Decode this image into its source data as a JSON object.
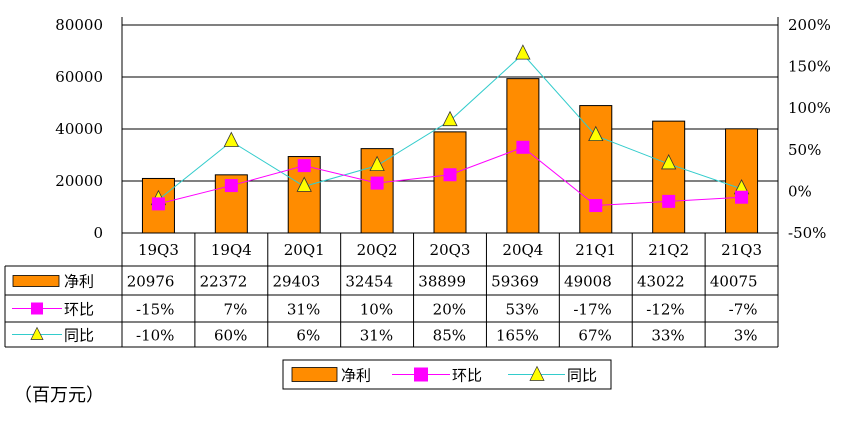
{
  "chart_data": {
    "type": "bar+line",
    "categories": [
      "19Q3",
      "19Q4",
      "20Q1",
      "20Q2",
      "20Q3",
      "20Q4",
      "21Q1",
      "21Q2",
      "21Q3"
    ],
    "series": [
      {
        "name": "净利",
        "type": "bar",
        "axis": "left",
        "color": "#FF8C00",
        "values": [
          20976,
          22372,
          29403,
          32454,
          38899,
          59369,
          49008,
          43022,
          40075
        ],
        "labels": [
          "20976",
          "22372",
          "29403",
          "32454",
          "38899",
          "59369",
          "49008",
          "43022",
          "40075"
        ]
      },
      {
        "name": "环比",
        "type": "line",
        "axis": "right",
        "color": "#FF00FF",
        "marker": "square",
        "values": [
          -15,
          7,
          31,
          10,
          20,
          53,
          -17,
          -12,
          -7
        ],
        "labels": [
          "-15%",
          "7%",
          "31%",
          "10%",
          "20%",
          "53%",
          "-17%",
          "-12%",
          "-7%"
        ]
      },
      {
        "name": "同比",
        "type": "line",
        "axis": "right",
        "color": "#33CCCC",
        "marker": "triangle",
        "marker_color": "#FFFF00",
        "values": [
          -10,
          60,
          6,
          31,
          85,
          165,
          67,
          33,
          3
        ],
        "labels": [
          "-10%",
          "60%",
          "6%",
          "31%",
          "85%",
          "165%",
          "67%",
          "33%",
          "3%"
        ]
      }
    ],
    "y_left": {
      "ylim": [
        0,
        80000
      ],
      "ticks": [
        0,
        20000,
        40000,
        60000,
        80000
      ],
      "tick_labels": [
        "0",
        "20000",
        "40000",
        "60000",
        "80000"
      ]
    },
    "y_right": {
      "ylim": [
        -50,
        200
      ],
      "ticks": [
        -50,
        0,
        50,
        100,
        150,
        200
      ],
      "tick_labels": [
        "-50%",
        "0%",
        "50%",
        "100%",
        "150%",
        "200%"
      ]
    },
    "grid": true,
    "legend_position": "bottom",
    "unit_note": "（百万元）"
  }
}
